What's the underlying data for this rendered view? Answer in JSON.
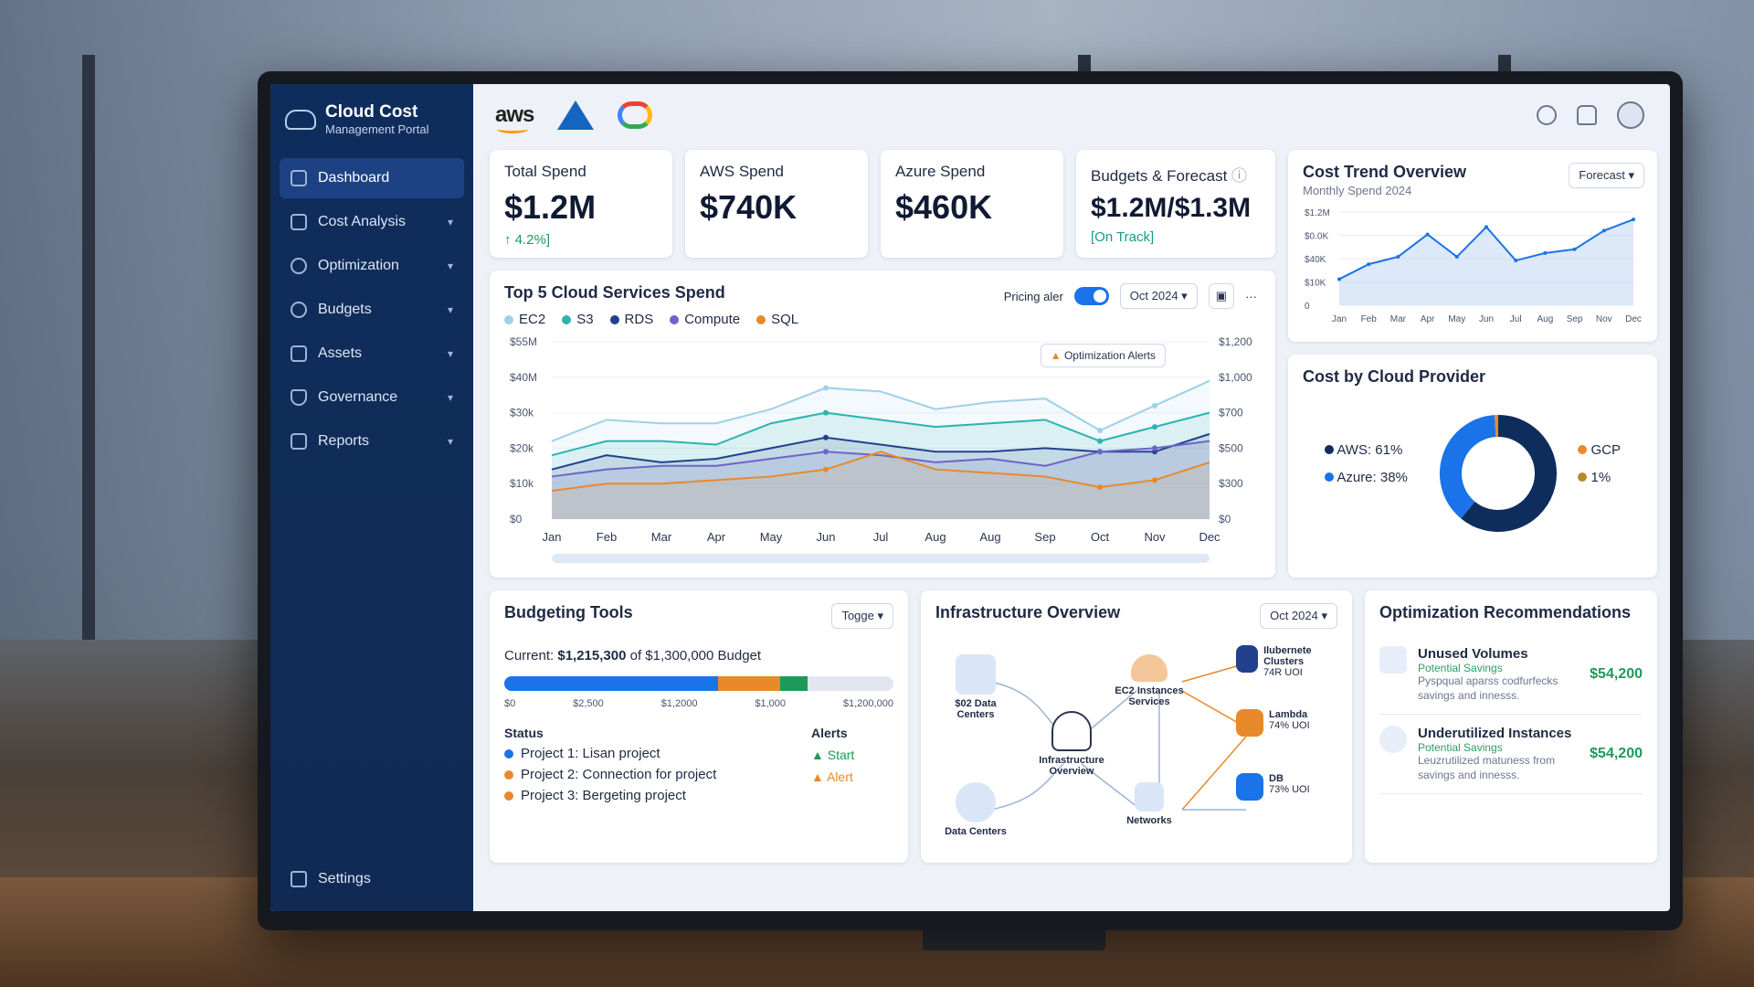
{
  "sidebar": {
    "brand_title": "Cloud Cost",
    "brand_sub": "Management Portal",
    "items": [
      {
        "label": "Dashboard"
      },
      {
        "label": "Cost Analysis"
      },
      {
        "label": "Optimization"
      },
      {
        "label": "Budgets"
      },
      {
        "label": "Assets"
      },
      {
        "label": "Governance"
      },
      {
        "label": "Reports"
      }
    ],
    "settings_label": "Settings"
  },
  "topbar": {
    "aws_logo": "aws"
  },
  "kpis": {
    "total": {
      "label": "Total Spend",
      "value": "$1.2M",
      "delta": "↑ 4.2%]"
    },
    "aws": {
      "label": "AWS Spend",
      "value": "$740K"
    },
    "azure": {
      "label": "Azure Spend",
      "value": "$460K"
    },
    "budget": {
      "label": "Budgets & Forecast",
      "value": "$1.2M/$1.3M",
      "status": "[On Track]"
    }
  },
  "trend": {
    "title": "Cost Trend Overview",
    "subtitle": "Monthly Spend 2024",
    "dropdown": "Forecast"
  },
  "top5": {
    "title": "Top 5 Cloud Services Spend",
    "pricing_label": "Pricing aler",
    "period": "Oct 2024",
    "alert_label": "Optimization Alerts"
  },
  "provider": {
    "title": "Cost by Cloud Provider",
    "legend": [
      {
        "label": "AWS: 61%",
        "color": "#0f2d5c"
      },
      {
        "label": "Azure: 38%",
        "color": "#1a73e8"
      },
      {
        "label": "GCP",
        "color": "#e8892b"
      },
      {
        "label": "1%",
        "color": "#b58a2e"
      }
    ]
  },
  "budgeting": {
    "title": "Budgeting Tools",
    "toggle_label": "Togge",
    "current_prefix": "Current:",
    "current_value": "$1,215,300",
    "current_suffix": "of $1,300,000 Budget",
    "scale": [
      "$0",
      "$2,500",
      "$1,2000",
      "$1,000",
      "$1,200,000"
    ],
    "status_heading": "Status",
    "alerts_heading": "Alerts",
    "projects": [
      {
        "label": "Project 1: Lisan project",
        "color": "#1a73e8"
      },
      {
        "label": "Project 2: Connection for project",
        "color": "#e8892b"
      },
      {
        "label": "Project 3: Bergeting project",
        "color": "#e8892b"
      }
    ],
    "alerts": [
      {
        "label": "Start",
        "color": "#1d9a5a"
      },
      {
        "label": "Alert",
        "color": "#e8892b"
      }
    ]
  },
  "infra": {
    "title": "Infrastructure Overview",
    "period": "Oct 2024",
    "nodes": {
      "dc1": "$02 Data Centers",
      "dc2": "Data Centers",
      "center": "Infrastructure Overview",
      "ec2": "EC2 Instances Services",
      "net": "Networks",
      "k8s": "Ilubernete Clusters",
      "k8s_util": "74R UOI",
      "lambda": "Lambda",
      "lambda_util": "74% UOI",
      "db": "DB",
      "db_util": "73% UOI"
    }
  },
  "recs": {
    "title": "Optimization Recommendations",
    "items": [
      {
        "title": "Unused Volumes",
        "sub": "Potential Savings",
        "desc": "Pyspqual aparss codfurfecks savings and innesss.",
        "value": "$54,200"
      },
      {
        "title": "Underutilized Instances",
        "sub": "Potential Savings",
        "desc": "Leuzrutilized matuness from savings and innesss.",
        "value": "$54,200"
      }
    ]
  },
  "chart_data": [
    {
      "type": "area",
      "title": "Cost Trend Overview",
      "subtitle": "Monthly Spend 2024",
      "categories": [
        "Jan",
        "Feb",
        "Mar",
        "Apr",
        "May",
        "Jun",
        "Jul",
        "Aug",
        "Sep",
        "Nov",
        "Dec"
      ],
      "series": [
        {
          "name": "",
          "values": [
            14,
            22,
            26,
            38,
            26,
            42,
            24,
            28,
            30,
            40,
            46
          ]
        }
      ],
      "yticks": [
        "0",
        "$10K",
        "$40K",
        "$0.0K",
        "$1.2M"
      ]
    },
    {
      "type": "area",
      "title": "Top 5 Cloud Services Spend",
      "categories": [
        "Jan",
        "Feb",
        "Mar",
        "Apr",
        "May",
        "Jun",
        "Jul",
        "Aug",
        "Aug",
        "Sep",
        "Oct",
        "Nov",
        "Dec"
      ],
      "yticks_left": [
        "$0",
        "$10k",
        "$20k",
        "$30k",
        "$40M",
        "$55M"
      ],
      "yticks_right": [
        "$0",
        "$300",
        "$500",
        "$700",
        "$1,000",
        "$1,200"
      ],
      "series": [
        {
          "name": "EC2",
          "color": "#9fd0e8",
          "values": [
            22,
            28,
            27,
            27,
            31,
            37,
            36,
            31,
            33,
            34,
            25,
            32,
            39
          ]
        },
        {
          "name": "S3",
          "color": "#2bb3b0",
          "values": [
            18,
            22,
            22,
            21,
            27,
            30,
            28,
            26,
            27,
            28,
            22,
            26,
            30
          ]
        },
        {
          "name": "RDS",
          "color": "#23408e",
          "values": [
            14,
            18,
            16,
            17,
            20,
            23,
            21,
            19,
            19,
            20,
            19,
            19,
            24
          ]
        },
        {
          "name": "Compute",
          "color": "#6f64c8",
          "values": [
            12,
            14,
            15,
            15,
            17,
            19,
            18,
            16,
            17,
            15,
            19,
            20,
            22
          ]
        },
        {
          "name": "SQL",
          "color": "#e8892b",
          "values": [
            8,
            10,
            10,
            11,
            12,
            14,
            19,
            14,
            13,
            12,
            9,
            11,
            16
          ]
        }
      ]
    },
    {
      "type": "pie",
      "title": "Cost by Cloud Provider",
      "categories": [
        "AWS",
        "Azure",
        "GCP"
      ],
      "values": [
        61,
        38,
        1
      ]
    }
  ]
}
